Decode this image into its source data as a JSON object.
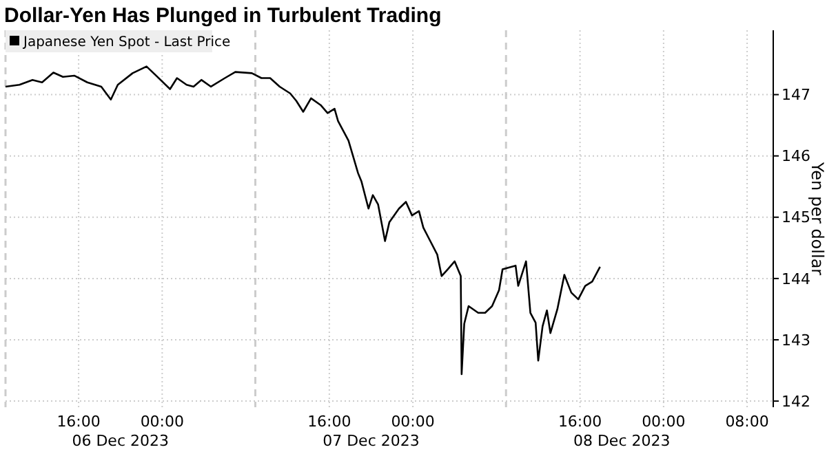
{
  "chart_data": {
    "type": "line",
    "title": "Dollar-Yen Has Plunged in Turbulent Trading",
    "ylabel": "Yen per dollar",
    "legend": "top left",
    "grid": true,
    "line_style": "solid",
    "marker": "none",
    "xlim": [
      "2023-12-05T09:00",
      "2023-12-08T10:30"
    ],
    "xticks": [
      {
        "value": "2023-12-05T16:00",
        "label": "16:00"
      },
      {
        "value": "2023-12-06T00:00",
        "label": "00:00"
      },
      {
        "value": "2023-12-06T16:00",
        "label": "16:00"
      },
      {
        "value": "2023-12-07T00:00",
        "label": "00:00"
      },
      {
        "value": "2023-12-07T16:00",
        "label": "16:00"
      },
      {
        "value": "2023-12-08T00:00",
        "label": "00:00"
      },
      {
        "value": "2023-12-08T08:00",
        "label": "08:00"
      }
    ],
    "ylim": [
      141.9,
      148.05
    ],
    "yticks": [
      142,
      143,
      144,
      145,
      146,
      147
    ],
    "annotations": [
      "06 Dec 2023",
      "07 Dec 2023",
      "08 Dec 2023"
    ],
    "ref_lines": [
      {
        "axis": "x",
        "value": "2023-12-05T09:00",
        "line_style": "dashed",
        "color": "#cccccc"
      },
      {
        "axis": "x",
        "value": "2023-12-06T08:55",
        "line_style": "dashed",
        "color": "#cccccc"
      },
      {
        "axis": "x",
        "value": "2023-12-07T08:55",
        "line_style": "dashed",
        "color": "#cccccc"
      }
    ],
    "series": [
      {
        "name": "Japanese Yen Spot - Last Price",
        "color": "#000000",
        "x": [
          "2023-12-05T09:00",
          "2023-12-05T10:20",
          "2023-12-05T11:35",
          "2023-12-05T12:30",
          "2023-12-05T13:35",
          "2023-12-05T14:30",
          "2023-12-05T15:35",
          "2023-12-05T16:50",
          "2023-12-05T18:10",
          "2023-12-05T19:05",
          "2023-12-05T19:45",
          "2023-12-05T21:10",
          "2023-12-05T22:30",
          "2023-12-05T23:25",
          "2023-12-06T00:45",
          "2023-12-06T01:25",
          "2023-12-06T02:20",
          "2023-12-06T03:00",
          "2023-12-06T03:45",
          "2023-12-06T04:40",
          "2023-12-06T06:00",
          "2023-12-06T07:00",
          "2023-12-06T08:35",
          "2023-12-06T09:30",
          "2023-12-06T10:20",
          "2023-12-06T11:15",
          "2023-12-06T12:15",
          "2023-12-06T12:50",
          "2023-12-06T13:30",
          "2023-12-06T14:15",
          "2023-12-06T15:10",
          "2023-12-06T15:50",
          "2023-12-06T16:30",
          "2023-12-06T16:50",
          "2023-12-06T17:50",
          "2023-12-06T18:45",
          "2023-12-06T19:05",
          "2023-12-06T19:45",
          "2023-12-06T20:10",
          "2023-12-06T20:40",
          "2023-12-06T21:20",
          "2023-12-06T21:45",
          "2023-12-06T22:40",
          "2023-12-06T23:20",
          "2023-12-06T23:55",
          "2023-12-07T00:35",
          "2023-12-07T01:00",
          "2023-12-07T01:40",
          "2023-12-07T02:20",
          "2023-12-07T02:45",
          "2023-12-07T03:20",
          "2023-12-07T04:00",
          "2023-12-07T04:35",
          "2023-12-07T04:40",
          "2023-12-07T04:55",
          "2023-12-07T05:20",
          "2023-12-07T06:15",
          "2023-12-07T06:55",
          "2023-12-07T07:35",
          "2023-12-07T08:15",
          "2023-12-07T08:35",
          "2023-12-07T09:50",
          "2023-12-07T10:05",
          "2023-12-07T10:50",
          "2023-12-07T11:15",
          "2023-12-07T11:45",
          "2023-12-07T12:00",
          "2023-12-07T12:25",
          "2023-12-07T12:50",
          "2023-12-07T13:10",
          "2023-12-07T13:50",
          "2023-12-07T14:30",
          "2023-12-07T15:10",
          "2023-12-07T15:50",
          "2023-12-07T16:30",
          "2023-12-07T17:10",
          "2023-12-07T17:55"
        ],
        "values": [
          147.13,
          147.16,
          147.24,
          147.2,
          147.36,
          147.29,
          147.31,
          147.2,
          147.13,
          146.92,
          147.16,
          147.35,
          147.46,
          147.31,
          147.09,
          147.27,
          147.16,
          147.13,
          147.24,
          147.13,
          147.27,
          147.37,
          147.35,
          147.27,
          147.27,
          147.13,
          147.02,
          146.9,
          146.72,
          146.94,
          146.83,
          146.7,
          146.77,
          146.57,
          146.25,
          145.72,
          145.58,
          145.14,
          145.36,
          145.21,
          144.61,
          144.92,
          145.14,
          145.25,
          145.03,
          145.1,
          144.83,
          144.61,
          144.39,
          144.04,
          144.15,
          144.28,
          144.04,
          142.44,
          143.26,
          143.55,
          143.44,
          143.44,
          143.55,
          143.81,
          144.15,
          144.21,
          143.88,
          144.28,
          143.44,
          143.28,
          142.66,
          143.22,
          143.48,
          143.11,
          143.5,
          144.06,
          143.77,
          143.66,
          143.88,
          143.95,
          144.19
        ]
      }
    ]
  }
}
